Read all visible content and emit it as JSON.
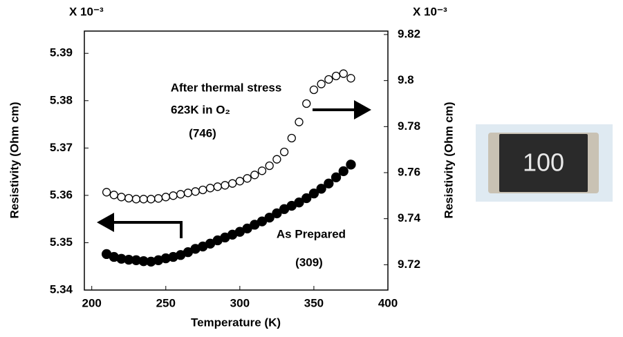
{
  "chart_data": {
    "type": "scatter",
    "x_label": "Temperature (K)",
    "y_label": "Resistivity  (Ohm cm)",
    "y2_label": "Resistivity  (Ohm cm)",
    "y_multiplier": "X 10⁻³",
    "y2_multiplier": "X 10⁻³",
    "annotations": [
      "After thermal stress",
      "623K  in O₂",
      "(746)",
      "As Prepared",
      "(309)"
    ],
    "x": [
      210,
      215,
      220,
      225,
      230,
      235,
      240,
      245,
      250,
      255,
      260,
      265,
      270,
      275,
      280,
      285,
      290,
      295,
      300,
      305,
      310,
      315,
      320,
      325,
      330,
      335,
      340,
      345,
      350,
      355,
      360,
      365,
      370,
      375
    ],
    "series": [
      {
        "name": "As Prepared",
        "color": "#000000",
        "filled": true,
        "values": [
          5.3476,
          5.347,
          5.3466,
          5.3464,
          5.3463,
          5.3461,
          5.346,
          5.3463,
          5.3467,
          5.347,
          5.3474,
          5.348,
          5.3487,
          5.3492,
          5.3498,
          5.3505,
          5.3511,
          5.3517,
          5.3523,
          5.353,
          5.3538,
          5.3545,
          5.3553,
          5.3562,
          5.3571,
          5.3578,
          5.3585,
          5.3594,
          5.3604,
          5.3614,
          5.3625,
          5.3638,
          5.3651,
          5.3665
        ]
      },
      {
        "name": "After thermal stress",
        "color": "#000000",
        "filled": false,
        "axis": "y2",
        "values": [
          9.7515,
          9.7503,
          9.7494,
          9.7489,
          9.7485,
          9.7485,
          9.7485,
          9.7488,
          9.7494,
          9.75,
          9.7506,
          9.7512,
          9.7518,
          9.7525,
          9.7533,
          9.7539,
          9.7545,
          9.7553,
          9.7563,
          9.7575,
          9.759,
          9.7608,
          9.763,
          9.7658,
          9.769,
          9.775,
          9.782,
          9.79,
          9.796,
          9.7985,
          9.8005,
          9.802,
          9.803,
          9.801
        ]
      }
    ],
    "xlim": [
      195,
      400
    ],
    "xticks": [
      200,
      250,
      300,
      350,
      400
    ],
    "ylim": [
      5.34,
      5.3947
    ],
    "yticks": [
      5.34,
      5.35,
      5.36,
      5.37,
      5.38,
      5.39
    ],
    "y2lim": [
      9.709,
      9.8215
    ],
    "y2ticks": [
      9.72,
      9.74,
      9.76,
      9.78,
      9.8,
      9.82
    ]
  },
  "resistor": {
    "label": "100"
  }
}
